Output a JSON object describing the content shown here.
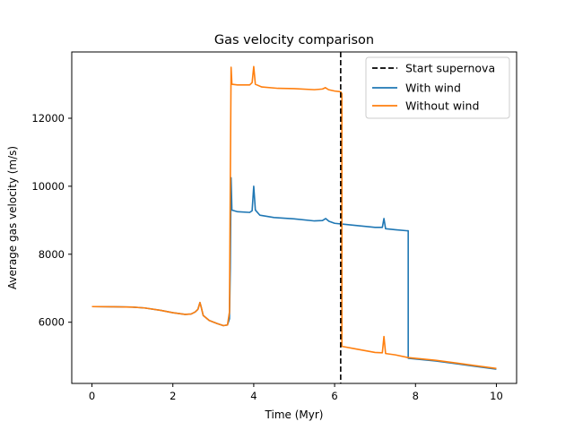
{
  "chart_data": {
    "type": "line",
    "title": "Gas velocity comparison",
    "xlabel": "Time (Myr)",
    "ylabel": "Average gas velocity (m/s)",
    "xlim": [
      -0.5,
      10.5
    ],
    "ylim": [
      4200,
      13950
    ],
    "xticks": [
      0,
      2,
      4,
      6,
      8,
      10
    ],
    "yticks": [
      6000,
      8000,
      10000,
      12000
    ],
    "grid": false,
    "legend_position": "top-right",
    "vline": {
      "name": "Start supernova",
      "x": 6.15,
      "color": "#000000",
      "style": "dashed"
    },
    "series": [
      {
        "name": "With wind",
        "color": "#1f77b4",
        "points": [
          [
            0,
            6460
          ],
          [
            0.5,
            6455
          ],
          [
            1.0,
            6445
          ],
          [
            1.3,
            6420
          ],
          [
            1.7,
            6350
          ],
          [
            2.0,
            6280
          ],
          [
            2.3,
            6230
          ],
          [
            2.45,
            6240
          ],
          [
            2.55,
            6300
          ],
          [
            2.62,
            6380
          ],
          [
            2.67,
            6580
          ],
          [
            2.7,
            6450
          ],
          [
            2.75,
            6200
          ],
          [
            2.9,
            6050
          ],
          [
            3.1,
            5960
          ],
          [
            3.25,
            5900
          ],
          [
            3.35,
            5920
          ],
          [
            3.4,
            6100
          ],
          [
            3.42,
            7600
          ],
          [
            3.44,
            10250
          ],
          [
            3.46,
            9300
          ],
          [
            3.6,
            9250
          ],
          [
            3.9,
            9230
          ],
          [
            3.96,
            9280
          ],
          [
            4.0,
            10000
          ],
          [
            4.04,
            9300
          ],
          [
            4.15,
            9150
          ],
          [
            4.5,
            9080
          ],
          [
            5.0,
            9040
          ],
          [
            5.5,
            8980
          ],
          [
            5.7,
            8990
          ],
          [
            5.78,
            9050
          ],
          [
            5.86,
            8970
          ],
          [
            6.0,
            8910
          ],
          [
            6.5,
            8850
          ],
          [
            7.0,
            8790
          ],
          [
            7.18,
            8790
          ],
          [
            7.22,
            9050
          ],
          [
            7.26,
            8750
          ],
          [
            7.5,
            8720
          ],
          [
            7.8,
            8690
          ],
          [
            7.82,
            8690
          ],
          [
            7.82,
            4940
          ],
          [
            8.5,
            4860
          ],
          [
            9.0,
            4780
          ],
          [
            9.5,
            4700
          ],
          [
            10.0,
            4620
          ]
        ]
      },
      {
        "name": "Without wind",
        "color": "#ff7f0e",
        "points": [
          [
            0,
            6460
          ],
          [
            0.5,
            6455
          ],
          [
            1.0,
            6445
          ],
          [
            1.3,
            6420
          ],
          [
            1.7,
            6350
          ],
          [
            2.0,
            6280
          ],
          [
            2.3,
            6230
          ],
          [
            2.45,
            6240
          ],
          [
            2.55,
            6300
          ],
          [
            2.62,
            6380
          ],
          [
            2.67,
            6580
          ],
          [
            2.7,
            6450
          ],
          [
            2.75,
            6200
          ],
          [
            2.9,
            6050
          ],
          [
            3.1,
            5960
          ],
          [
            3.25,
            5900
          ],
          [
            3.35,
            5920
          ],
          [
            3.4,
            6300
          ],
          [
            3.42,
            10000
          ],
          [
            3.44,
            13500
          ],
          [
            3.46,
            13000
          ],
          [
            3.6,
            12980
          ],
          [
            3.9,
            12980
          ],
          [
            3.96,
            13050
          ],
          [
            4.0,
            13520
          ],
          [
            4.04,
            13000
          ],
          [
            4.2,
            12920
          ],
          [
            4.6,
            12880
          ],
          [
            5.0,
            12870
          ],
          [
            5.5,
            12840
          ],
          [
            5.7,
            12860
          ],
          [
            5.77,
            12900
          ],
          [
            5.85,
            12840
          ],
          [
            6.0,
            12800
          ],
          [
            6.15,
            12780
          ],
          [
            6.18,
            12720
          ],
          [
            6.18,
            5290
          ],
          [
            6.5,
            5220
          ],
          [
            7.0,
            5110
          ],
          [
            7.18,
            5100
          ],
          [
            7.22,
            5580
          ],
          [
            7.26,
            5080
          ],
          [
            7.5,
            5040
          ],
          [
            7.82,
            4960
          ],
          [
            8.5,
            4880
          ],
          [
            9.0,
            4800
          ],
          [
            9.5,
            4720
          ],
          [
            10.0,
            4640
          ]
        ]
      }
    ]
  }
}
